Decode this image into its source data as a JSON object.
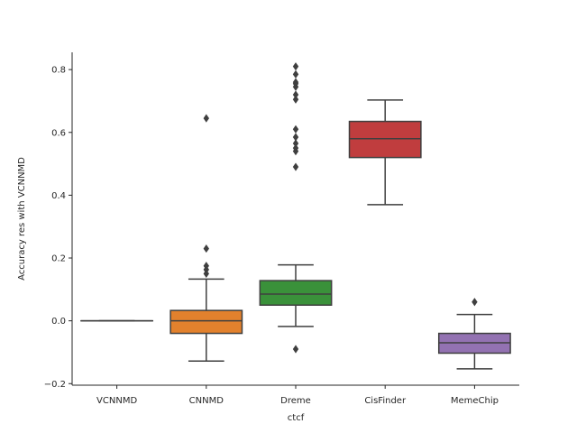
{
  "chart_data": {
    "type": "box",
    "title": "",
    "xlabel": "ctcf",
    "ylabel": "Accuracy res with VCNNMD",
    "ylim": [
      -0.205,
      0.855
    ],
    "yticks": [
      -0.2,
      0.0,
      0.2,
      0.4,
      0.6,
      0.8
    ],
    "ytick_labels": [
      "−0.2",
      "0.0",
      "0.2",
      "0.4",
      "0.6",
      "0.8"
    ],
    "grid": false,
    "legend": "none",
    "categories": [
      "VCNNMD",
      "CNNMD",
      "Dreme",
      "CisFinder",
      "MemeChip"
    ],
    "boxes": [
      {
        "name": "VCNNMD",
        "color": "#3a75af",
        "whisker_low": 0.0,
        "q1": 0.0,
        "median": 0.0,
        "q3": 0.0,
        "whisker_high": 0.0,
        "outliers": []
      },
      {
        "name": "CNNMD",
        "color": "#e2812d",
        "whisker_low": -0.128,
        "q1": -0.04,
        "median": 0.0,
        "q3": 0.033,
        "whisker_high": 0.133,
        "outliers": [
          0.645,
          0.23,
          0.175,
          0.163,
          0.15
        ]
      },
      {
        "name": "Dreme",
        "color": "#3a913a",
        "whisker_low": -0.018,
        "q1": 0.05,
        "median": 0.085,
        "q3": 0.128,
        "whisker_high": 0.178,
        "outliers": [
          -0.09,
          0.49,
          0.54,
          0.55,
          0.565,
          0.585,
          0.61,
          0.705,
          0.72,
          0.745,
          0.755,
          0.76,
          0.785,
          0.81
        ]
      },
      {
        "name": "CisFinder",
        "color": "#c03d3e",
        "whisker_low": 0.37,
        "q1": 0.52,
        "median": 0.58,
        "q3": 0.635,
        "whisker_high": 0.703,
        "outliers": []
      },
      {
        "name": "MemeChip",
        "color": "#9372b2",
        "whisker_low": -0.153,
        "q1": -0.103,
        "median": -0.07,
        "q3": -0.04,
        "whisker_high": 0.02,
        "outliers": [
          0.06
        ]
      }
    ]
  }
}
